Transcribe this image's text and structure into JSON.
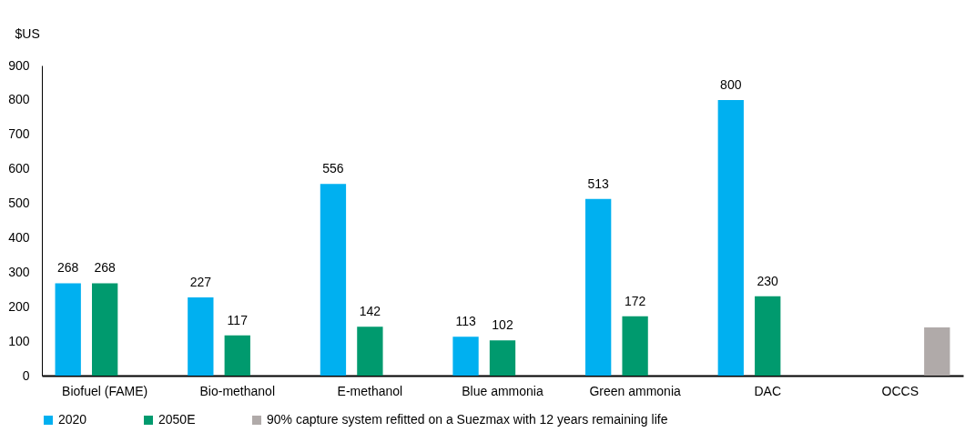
{
  "chart_data": {
    "type": "bar",
    "ylabel": "$US",
    "categories": [
      "Biofuel (FAME)",
      "Bio-methanol",
      "E-methanol",
      "Blue ammonia",
      "Green ammonia",
      "DAC",
      "OCCS"
    ],
    "series": [
      {
        "name": "2020",
        "color": "#00b0f0",
        "values": [
          268,
          227,
          556,
          113,
          513,
          800,
          null
        ],
        "value_labels": [
          "268",
          "227",
          "556",
          "113",
          "513",
          "800",
          null
        ]
      },
      {
        "name": "2050E",
        "color": "#009a6e",
        "values": [
          268,
          117,
          142,
          102,
          172,
          230,
          null
        ],
        "value_labels": [
          "268",
          "117",
          "142",
          "102",
          "172",
          "230",
          null
        ]
      },
      {
        "name": "90% capture system refitted on a Suezmax with 12 years remaining life",
        "color": "#b0aaa9",
        "values": [
          null,
          null,
          null,
          null,
          null,
          null,
          140
        ]
      }
    ],
    "ylim": [
      0,
      900
    ],
    "yticks": [
      0,
      100,
      200,
      300,
      400,
      500,
      600,
      700,
      800,
      900
    ],
    "grid": false,
    "legend": "bottom"
  }
}
